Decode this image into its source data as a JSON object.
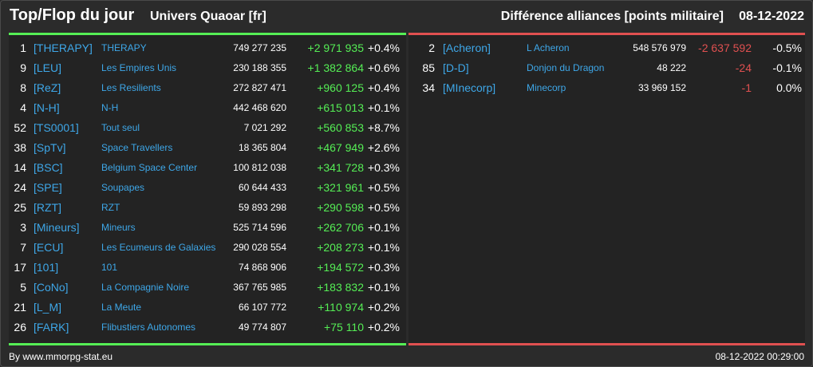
{
  "header": {
    "title": "Top/Flop du jour",
    "subtitle": "Univers Quaoar [fr]",
    "right_title": "Différence alliances [points militaire]",
    "date": "08-12-2022"
  },
  "colors": {
    "background": "#2b2b2b",
    "panel": "#232323",
    "link": "#3ea7e8",
    "positive": "#55ee55",
    "negative": "#e05050"
  },
  "top": [
    {
      "rank": "1",
      "tag": "[THERAPY]",
      "name": "THERAPY",
      "points": "749 277 235",
      "diff": "+2 971 935",
      "pct": "+0.4%"
    },
    {
      "rank": "9",
      "tag": "[LEU]",
      "name": "Les Empires Unis",
      "points": "230 188 355",
      "diff": "+1 382 864",
      "pct": "+0.6%"
    },
    {
      "rank": "8",
      "tag": "[ReZ]",
      "name": "Les Resilients",
      "points": "272 827 471",
      "diff": "+960 125",
      "pct": "+0.4%"
    },
    {
      "rank": "4",
      "tag": "[N-H]",
      "name": "N-H",
      "points": "442 468 620",
      "diff": "+615 013",
      "pct": "+0.1%"
    },
    {
      "rank": "52",
      "tag": "[TS0001]",
      "name": "Tout seul",
      "points": "7 021 292",
      "diff": "+560 853",
      "pct": "+8.7%"
    },
    {
      "rank": "38",
      "tag": "[SpTv]",
      "name": "Space Travellers",
      "points": "18 365 804",
      "diff": "+467 949",
      "pct": "+2.6%"
    },
    {
      "rank": "14",
      "tag": "[BSC]",
      "name": "Belgium Space Center",
      "points": "100 812 038",
      "diff": "+341 728",
      "pct": "+0.3%"
    },
    {
      "rank": "24",
      "tag": "[SPE]",
      "name": "Soupapes",
      "points": "60 644 433",
      "diff": "+321 961",
      "pct": "+0.5%"
    },
    {
      "rank": "25",
      "tag": "[RZT]",
      "name": "RZT",
      "points": "59 893 298",
      "diff": "+290 598",
      "pct": "+0.5%"
    },
    {
      "rank": "3",
      "tag": "[Mineurs]",
      "name": "Mineurs",
      "points": "525 714 596",
      "diff": "+262 706",
      "pct": "+0.1%"
    },
    {
      "rank": "7",
      "tag": "[ECU]",
      "name": "Les Ecumeurs de Galaxies",
      "points": "290 028 554",
      "diff": "+208 273",
      "pct": "+0.1%"
    },
    {
      "rank": "17",
      "tag": "[101]",
      "name": "101",
      "points": "74 868 906",
      "diff": "+194 572",
      "pct": "+0.3%"
    },
    {
      "rank": "5",
      "tag": "[CoNo]",
      "name": "La Compagnie Noire",
      "points": "367 765 985",
      "diff": "+183 832",
      "pct": "+0.1%"
    },
    {
      "rank": "21",
      "tag": "[L_M]",
      "name": "La Meute",
      "points": "66 107 772",
      "diff": "+110 974",
      "pct": "+0.2%"
    },
    {
      "rank": "26",
      "tag": "[FARK]",
      "name": "Flibustiers Autonomes",
      "points": "49 774 807",
      "diff": "+75 110",
      "pct": "+0.2%"
    }
  ],
  "flop": [
    {
      "rank": "2",
      "tag": "[Acheron]",
      "name": "L Acheron",
      "points": "548 576 979",
      "diff": "-2 637 592",
      "pct": "-0.5%"
    },
    {
      "rank": "85",
      "tag": "[D-D]",
      "name": "Donjon du Dragon",
      "points": "48 222",
      "diff": "-24",
      "pct": "-0.1%"
    },
    {
      "rank": "34",
      "tag": "[MInecorp]",
      "name": "Minecorp",
      "points": "33 969 152",
      "diff": "-1",
      "pct": "0.0%"
    }
  ],
  "footer": {
    "source": "By www.mmorpg-stat.eu",
    "timestamp": "08-12-2022 00:29:00"
  }
}
